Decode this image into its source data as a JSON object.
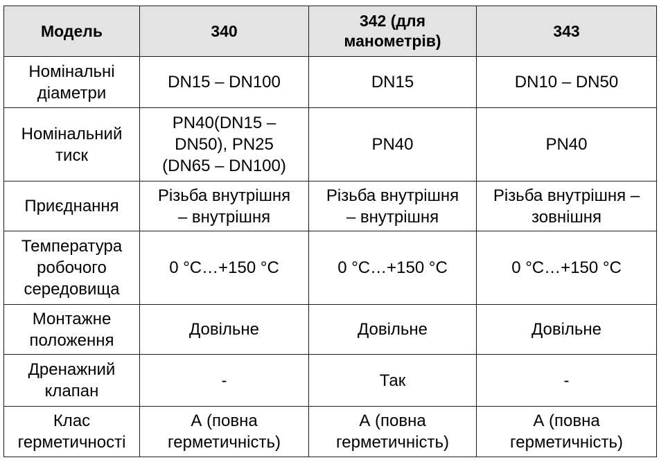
{
  "table": {
    "headers": [
      "Модель",
      "340",
      "342 (для\nманометрів)",
      "343"
    ],
    "rows": [
      {
        "label": "Номінальні\nдіаметри",
        "values": [
          "DN15 – DN100",
          "DN15",
          "DN10 – DN50"
        ]
      },
      {
        "label": "Номінальний\nтиск",
        "values": [
          "PN40(DN15 –\nDN50), PN25\n(DN65 – DN100)",
          "PN40",
          "PN40"
        ]
      },
      {
        "label": "Приєднання",
        "values": [
          "Різьба внутрішня\n– внутрішня",
          "Різьба внутрішня\n– внутрішня",
          "Різьба внутрішня –\nзовнішня"
        ]
      },
      {
        "label": "Температура\nробочого\nсередовища",
        "values": [
          "0 °С…+150 °С",
          "0 °С…+150 °С",
          "0 °С…+150 °С"
        ]
      },
      {
        "label": "Монтажне\nположення",
        "values": [
          "Довільне",
          "Довільне",
          "Довільне"
        ]
      },
      {
        "label": "Дренажний\nклапан",
        "values": [
          "-",
          "Так",
          "-"
        ]
      },
      {
        "label": "Клас\nгерметичності",
        "values": [
          "А (повна\nгерметичність)",
          "А (повна\nгерметичність)",
          "А (повна\nгерметичність)"
        ]
      }
    ]
  }
}
